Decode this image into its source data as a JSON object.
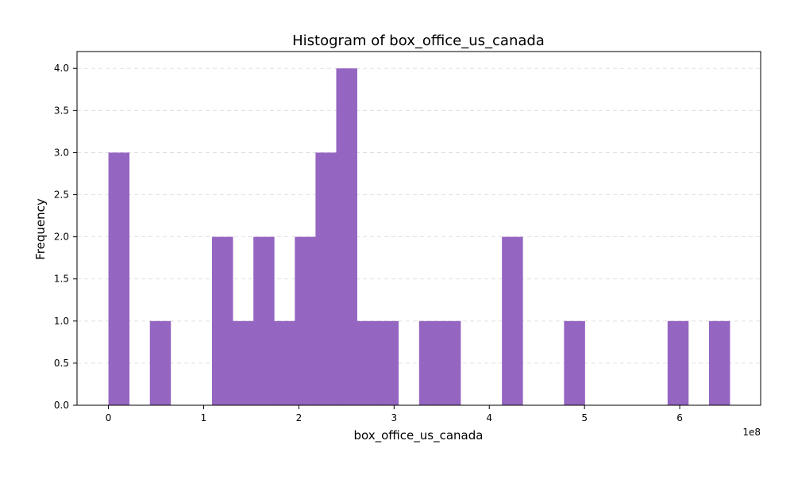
{
  "chart_data": {
    "type": "bar",
    "title": "Histogram of box_office_us_canada",
    "xlabel": "box_office_us_canada",
    "ylabel": "Frequency",
    "x_offset_label": "1e8",
    "color": "#9565c2",
    "grid": "y-dashed",
    "xlim": [
      -0.33,
      6.85
    ],
    "ylim": [
      0,
      4.2
    ],
    "x_ticks": [
      0,
      1,
      2,
      3,
      4,
      5,
      6
    ],
    "x_tick_labels": [
      "0",
      "1",
      "2",
      "3",
      "4",
      "5",
      "6"
    ],
    "y_ticks": [
      0,
      0.5,
      1,
      1.5,
      2,
      2.5,
      3,
      3.5,
      4
    ],
    "y_tick_labels": [
      "0.0",
      "0.5",
      "1.0",
      "1.5",
      "2.0",
      "2.5",
      "3.0",
      "3.5",
      "4.0"
    ],
    "bin_edges": [
      0.0,
      0.2175,
      0.435,
      0.6525,
      0.87,
      1.0875,
      1.305,
      1.5225,
      1.74,
      1.9575,
      2.175,
      2.3925,
      2.61,
      2.8275,
      3.045,
      3.2625,
      3.48,
      3.6975,
      3.915,
      4.1325,
      4.35,
      4.5675,
      4.785,
      5.0025,
      5.22,
      5.4375,
      5.655,
      5.8725,
      6.09,
      6.3075,
      6.525
    ],
    "values": [
      3,
      0,
      1,
      0,
      0,
      2,
      1,
      2,
      1,
      2,
      3,
      4,
      1,
      1,
      0,
      1,
      1,
      0,
      0,
      2,
      0,
      0,
      1,
      0,
      0,
      0,
      0,
      1,
      0,
      1
    ]
  }
}
